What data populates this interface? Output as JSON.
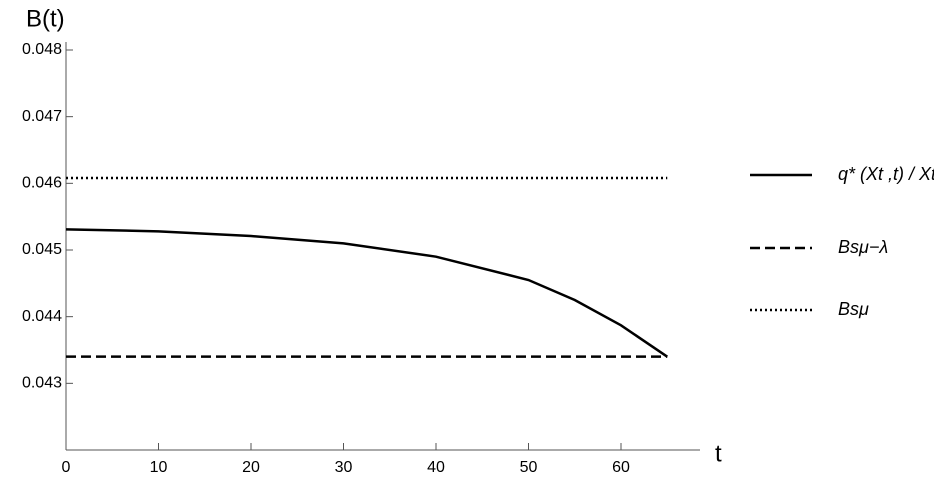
{
  "chart_data": {
    "type": "line",
    "x_label": "t",
    "y_label": "B(t)",
    "x": [
      0,
      10,
      20,
      30,
      40,
      50,
      55,
      60,
      65
    ],
    "series": [
      {
        "name": "q* (Xt ,t) / Xt",
        "color": "#000000",
        "line_style": "solid",
        "values": [
          0.04531,
          0.04528,
          0.04521,
          0.0451,
          0.0449,
          0.04455,
          0.04425,
          0.04387,
          0.0434
        ]
      },
      {
        "name": "Bsμ−λ",
        "color": "#000000",
        "line_style": "dashed",
        "values": [
          0.0434,
          0.0434,
          0.0434,
          0.0434,
          0.0434,
          0.0434,
          0.0434,
          0.0434,
          0.0434
        ]
      },
      {
        "name": "Bsμ",
        "color": "#000000",
        "line_style": "dotted",
        "values": [
          0.04608,
          0.04608,
          0.04608,
          0.04608,
          0.04608,
          0.04608,
          0.04608,
          0.04608,
          0.04608
        ]
      }
    ],
    "xlim": [
      0,
      68
    ],
    "xticks": [
      0,
      10,
      20,
      30,
      40,
      50,
      60
    ],
    "ylim": [
      0.042,
      0.048
    ],
    "yticks": [
      0.043,
      0.044,
      0.045,
      0.046,
      0.047,
      0.048
    ],
    "grid": false,
    "legend": "right"
  }
}
